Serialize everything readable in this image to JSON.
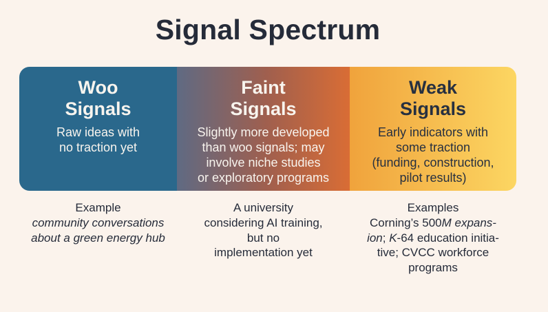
{
  "title": "Signal Spectrum",
  "colors": {
    "background": "#fbf3ec",
    "panel1": "#2a688c",
    "panel2_gradient_start": "#5f6a83",
    "panel2_gradient_mid": "#a05f4e",
    "panel2_gradient_end": "#d96d35",
    "panel3_gradient_start": "#f0a33c",
    "panel3_gradient_end": "#fcd662",
    "text_dark": "#252b39",
    "text_light": "#f8f4ee"
  },
  "panels": [
    {
      "title": "Woo\nSignals",
      "description": "Raw ideas with\nno traction yet"
    },
    {
      "title": "Faint\nSignals",
      "description": "Slightly more developed\nthan woo signals; may\ninvolve niche studies\nor exploratory programs"
    },
    {
      "title": "Weak\nSignals",
      "description": "Early indicators with\nsome traction\n(funding, construction,\npilot results)"
    }
  ],
  "examples": {
    "col1": {
      "heading": "Example",
      "body_italic": "community conversations\nabout a green energy hub"
    },
    "col2": {
      "body": "A university\nconsidering AI training,\nbut no\nimplementation yet"
    },
    "col3": {
      "heading": "Examples",
      "line2_regular": "Corning’s 500",
      "line2_italic": "M expans-",
      "line3_italic1": "ion",
      "line3_regular1": "; ",
      "line3_italic2": "K",
      "line3_regular2": "-64 education initia-",
      "line4": "tive; CVCC workforce",
      "line5": "programs"
    }
  }
}
